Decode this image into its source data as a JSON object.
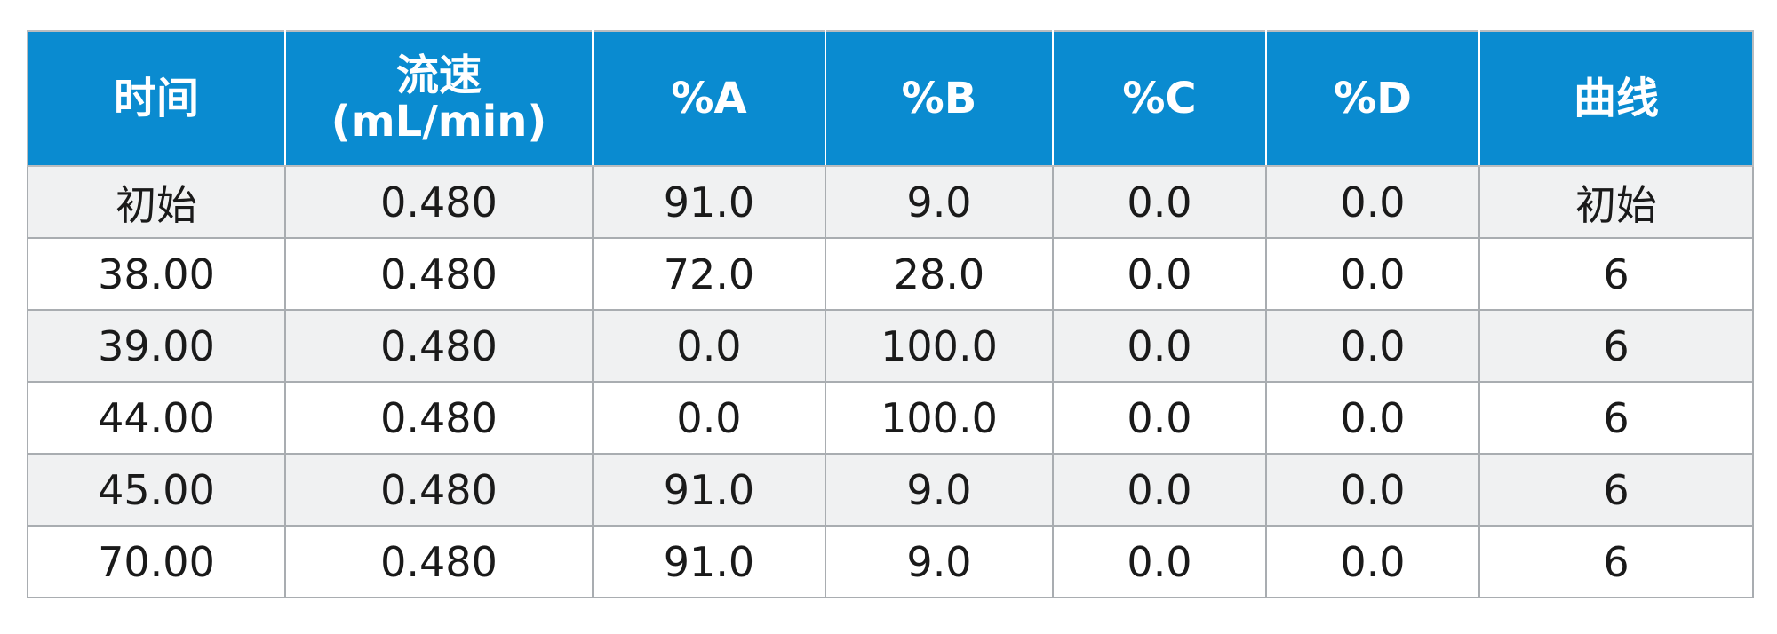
{
  "table": {
    "headers": [
      {
        "lines": [
          "时间"
        ]
      },
      {
        "lines": [
          "流速",
          "(mL/min)"
        ]
      },
      {
        "lines": [
          "%A"
        ]
      },
      {
        "lines": [
          "%B"
        ]
      },
      {
        "lines": [
          "%C"
        ]
      },
      {
        "lines": [
          "%D"
        ]
      },
      {
        "lines": [
          "曲线"
        ]
      }
    ],
    "rows": [
      [
        "初始",
        "0.480",
        "91.0",
        "9.0",
        "0.0",
        "0.0",
        "初始"
      ],
      [
        "38.00",
        "0.480",
        "72.0",
        "28.0",
        "0.0",
        "0.0",
        "6"
      ],
      [
        "39.00",
        "0.480",
        "0.0",
        "100.0",
        "0.0",
        "0.0",
        "6"
      ],
      [
        "44.00",
        "0.480",
        "0.0",
        "100.0",
        "0.0",
        "0.0",
        "6"
      ],
      [
        "45.00",
        "0.480",
        "91.0",
        "9.0",
        "0.0",
        "0.0",
        "6"
      ],
      [
        "70.00",
        "0.480",
        "91.0",
        "9.0",
        "0.0",
        "0.0",
        "6"
      ]
    ]
  },
  "colors": {
    "header_bg": "#0a8bd0",
    "header_text": "#ffffff",
    "row_alt_bg": "#f0f1f2",
    "border": "#a9adb1"
  }
}
